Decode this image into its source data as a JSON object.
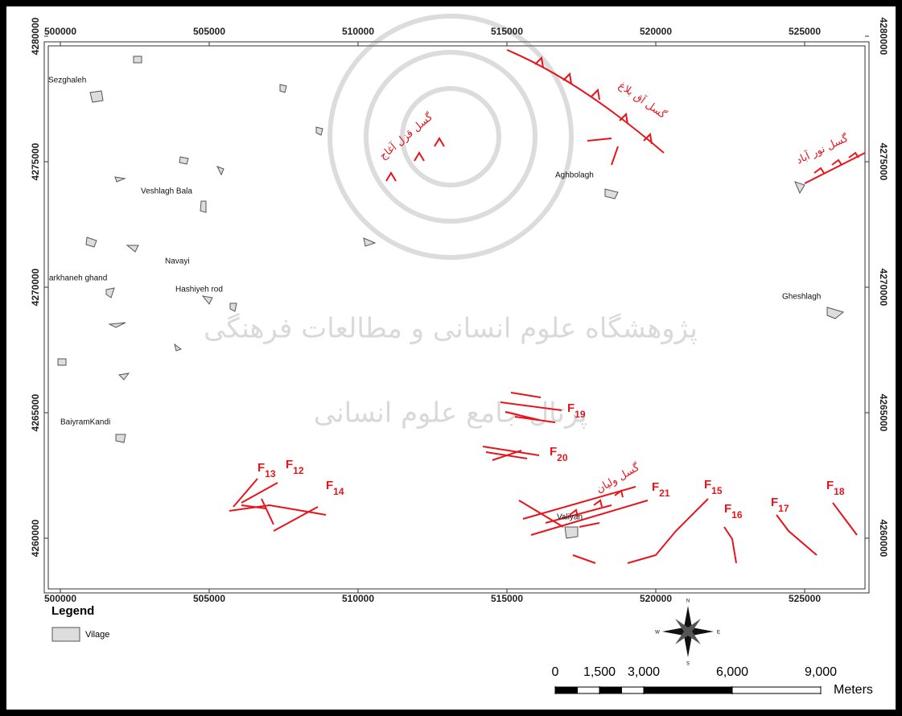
{
  "map": {
    "xticks": [
      500000,
      505000,
      510000,
      515000,
      520000,
      525000
    ],
    "yticks": [
      4280000,
      4275000,
      4270000,
      4265000,
      4260000
    ],
    "villages": [
      "Sezghaleh",
      "Veshlagh Bala",
      "Navayi",
      "arkhaneh ghand",
      "Hashiyeh rod",
      "BaiyramKandi",
      "Aghbolagh",
      "Gheshlagh",
      "Valiyan"
    ],
    "fault_names": [
      "گسل قزل آغاج",
      "گسل آق بلاغ",
      "گسل نور آباد",
      "گسل ولیان"
    ],
    "faults": [
      {
        "letter": "F",
        "sub": "13"
      },
      {
        "letter": "F",
        "sub": "12"
      },
      {
        "letter": "F",
        "sub": "14"
      },
      {
        "letter": "F",
        "sub": "19"
      },
      {
        "letter": "F",
        "sub": "20"
      },
      {
        "letter": "F",
        "sub": "21"
      },
      {
        "letter": "F",
        "sub": "15"
      },
      {
        "letter": "F",
        "sub": "16"
      },
      {
        "letter": "F",
        "sub": "17"
      },
      {
        "letter": "F",
        "sub": "18"
      }
    ],
    "watermark": [
      "پژوهشگاه علوم انسانی و مطالعات فرهنگی",
      "پرتال جامع علوم انسانی"
    ]
  },
  "legend": {
    "title": "Legend",
    "item": "Vilage"
  },
  "compass": {
    "n": "N",
    "e": "E",
    "s": "S",
    "w": "W"
  },
  "scale_bar": {
    "ticks": [
      {
        "value": 0,
        "label": "0"
      },
      {
        "value": 1500,
        "label": "1,500"
      },
      {
        "value": 3000,
        "label": "3,000"
      },
      {
        "value": 6000,
        "label": "6,000"
      },
      {
        "value": 9000,
        "label": "9,000"
      }
    ],
    "unit": "Meters"
  }
}
